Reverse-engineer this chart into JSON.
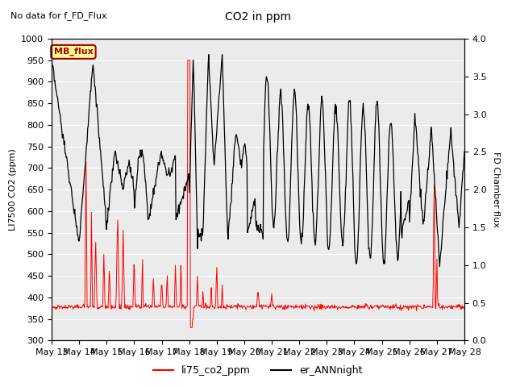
{
  "title": "CO2 in ppm",
  "subtitle": "No data for f_FD_Flux",
  "ylabel_left": "LI7500 CO2 (ppm)",
  "ylabel_right": "FD Chamber flux",
  "ylim_left": [
    300,
    1000
  ],
  "ylim_right": [
    0.0,
    4.0
  ],
  "yticks_left": [
    300,
    350,
    400,
    450,
    500,
    550,
    600,
    650,
    700,
    750,
    800,
    850,
    900,
    950,
    1000
  ],
  "yticks_right": [
    0.0,
    0.5,
    1.0,
    1.5,
    2.0,
    2.5,
    3.0,
    3.5,
    4.0
  ],
  "xtick_labels": [
    "May 13",
    "May 14",
    "May 15",
    "May 16",
    "May 17",
    "May 18",
    "May 19",
    "May 20",
    "May 21",
    "May 22",
    "May 23",
    "May 24",
    "May 25",
    "May 26",
    "May 27",
    "May 28"
  ],
  "legend_labels": [
    "li75_co2_ppm",
    "er_ANNnight"
  ],
  "legend_colors": [
    "#ff0000",
    "#000000"
  ],
  "mb_flux_box_color": "#ffff99",
  "mb_flux_border_color": "#aa0000",
  "mb_flux_text_color": "#aa0000",
  "line1_color": "#ff0000",
  "line2_color": "#000000",
  "background_color": "#ebebeb",
  "grid_color": "#ffffff",
  "fig_bgcolor": "#ffffff"
}
